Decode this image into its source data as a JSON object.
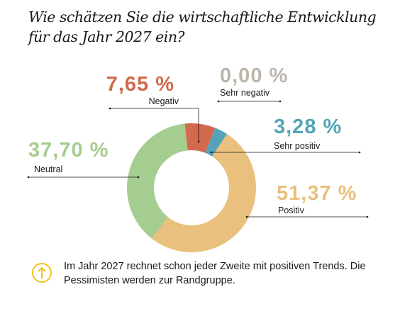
{
  "title": "Wie schätzen Sie die wirtschaftliche Entwicklung für das Jahr 2027 ein?",
  "note": "Im Jahr 2027 rechnet schon jeder Zweite mit positiven Trends. Die Pessimisten werden zur Randgruppe.",
  "note_icon": "arrow-up-circle-icon",
  "chart_data": {
    "type": "pie",
    "variant": "donut",
    "title": "Wie schätzen Sie die wirtschaftliche Entwicklung für das Jahr 2027 ein?",
    "slices": [
      {
        "label": "Negativ",
        "value": 7.65,
        "display": "7,65 %",
        "color": "#d2694d"
      },
      {
        "label": "Sehr negativ",
        "value": 0.0,
        "display": "0,00 %",
        "color": "#bdb5aa"
      },
      {
        "label": "Sehr positiv",
        "value": 3.28,
        "display": "3,28 %",
        "color": "#55a3b8"
      },
      {
        "label": "Positiv",
        "value": 51.37,
        "display": "51,37 %",
        "color": "#e9c07e"
      },
      {
        "label": "Neutral",
        "value": 37.7,
        "display": "37,70 %",
        "color": "#a5cd8f"
      }
    ]
  }
}
